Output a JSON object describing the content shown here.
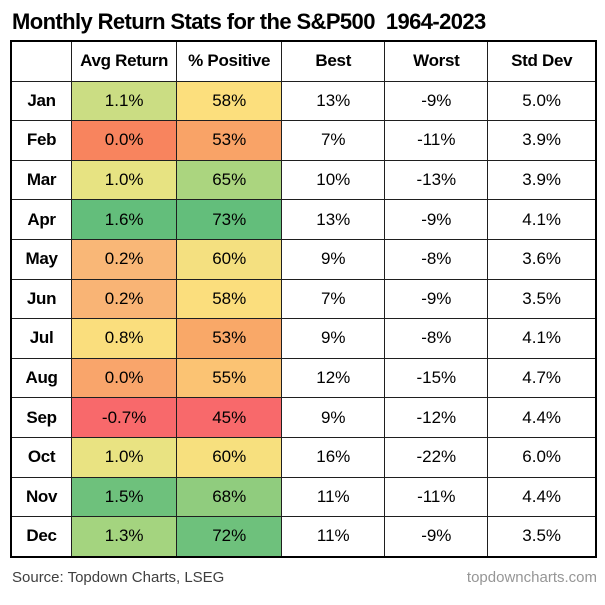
{
  "title": "Monthly Return Stats for the S&P500  1964-2023",
  "columns": [
    "",
    "Avg Return",
    "% Positive",
    "Best",
    "Worst",
    "Std Dev"
  ],
  "table": {
    "rows": [
      {
        "month": "Jan",
        "avg_return": "1.1%",
        "avg_color": "#cbdd83",
        "pct_positive": "58%",
        "pos_color": "#fcdf7d",
        "best": "13%",
        "worst": "-9%",
        "std_dev": "5.0%"
      },
      {
        "month": "Feb",
        "avg_return": "0.0%",
        "avg_color": "#f8845e",
        "pct_positive": "53%",
        "pos_color": "#f9a367",
        "best": "7%",
        "worst": "-11%",
        "std_dev": "3.9%"
      },
      {
        "month": "Mar",
        "avg_return": "1.0%",
        "avg_color": "#e7e382",
        "pct_positive": "65%",
        "pos_color": "#abd57f",
        "best": "10%",
        "worst": "-13%",
        "std_dev": "3.9%"
      },
      {
        "month": "Apr",
        "avg_return": "1.6%",
        "avg_color": "#63be7b",
        "pct_positive": "73%",
        "pos_color": "#63be7b",
        "best": "13%",
        "worst": "-9%",
        "std_dev": "4.1%"
      },
      {
        "month": "May",
        "avg_return": "0.2%",
        "avg_color": "#f9b777",
        "pct_positive": "60%",
        "pos_color": "#f4e080",
        "best": "9%",
        "worst": "-8%",
        "std_dev": "3.6%"
      },
      {
        "month": "Jun",
        "avg_return": "0.2%",
        "avg_color": "#f9b475",
        "pct_positive": "58%",
        "pos_color": "#fbde7d",
        "best": "7%",
        "worst": "-9%",
        "std_dev": "3.5%"
      },
      {
        "month": "Jul",
        "avg_return": "0.8%",
        "avg_color": "#fade7d",
        "pct_positive": "53%",
        "pos_color": "#f9a868",
        "best": "9%",
        "worst": "-8%",
        "std_dev": "4.1%"
      },
      {
        "month": "Aug",
        "avg_return": "0.0%",
        "avg_color": "#f9a56b",
        "pct_positive": "55%",
        "pos_color": "#fbc373",
        "best": "12%",
        "worst": "-15%",
        "std_dev": "4.7%"
      },
      {
        "month": "Sep",
        "avg_return": "-0.7%",
        "avg_color": "#f8696b",
        "pct_positive": "45%",
        "pos_color": "#f8696b",
        "best": "9%",
        "worst": "-12%",
        "std_dev": "4.4%"
      },
      {
        "month": "Oct",
        "avg_return": "1.0%",
        "avg_color": "#e9e382",
        "pct_positive": "60%",
        "pos_color": "#f7e07e",
        "best": "16%",
        "worst": "-22%",
        "std_dev": "6.0%"
      },
      {
        "month": "Nov",
        "avg_return": "1.5%",
        "avg_color": "#6ec17c",
        "pct_positive": "68%",
        "pos_color": "#90cc7e",
        "best": "11%",
        "worst": "-11%",
        "std_dev": "4.4%"
      },
      {
        "month": "Dec",
        "avg_return": "1.3%",
        "avg_color": "#a4d47f",
        "pct_positive": "72%",
        "pos_color": "#6ec17c",
        "best": "11%",
        "worst": "-9%",
        "std_dev": "3.5%"
      }
    ]
  },
  "footer": {
    "source": "Source: Topdown Charts, LSEG",
    "website": "topdowncharts.com"
  },
  "colors": {
    "heatmap_green": "#63be7b",
    "heatmap_yellow": "#ffeb84",
    "heatmap_red": "#f8696b",
    "border": "#000000",
    "footer_source": "#3f3f3f",
    "footer_site": "#969696"
  },
  "chart_data": {
    "type": "table",
    "title": "Monthly Return Stats for the S&P500 1964-2023",
    "row_labels": [
      "Jan",
      "Feb",
      "Mar",
      "Apr",
      "May",
      "Jun",
      "Jul",
      "Aug",
      "Sep",
      "Oct",
      "Nov",
      "Dec"
    ],
    "columns": [
      "Avg Return",
      "% Positive",
      "Best",
      "Worst",
      "Std Dev"
    ],
    "avg_return_pct": [
      1.1,
      0.0,
      1.0,
      1.6,
      0.2,
      0.2,
      0.8,
      0.0,
      -0.7,
      1.0,
      1.5,
      1.3
    ],
    "pct_positive": [
      58,
      53,
      65,
      73,
      60,
      58,
      53,
      55,
      45,
      60,
      68,
      72
    ],
    "best_pct": [
      13,
      7,
      10,
      13,
      9,
      7,
      9,
      12,
      9,
      16,
      11,
      11
    ],
    "worst_pct": [
      -9,
      -11,
      -13,
      -9,
      -8,
      -9,
      -8,
      -15,
      -12,
      -22,
      -11,
      -9
    ],
    "std_dev_pct": [
      5.0,
      3.9,
      3.9,
      4.1,
      3.6,
      3.5,
      4.1,
      4.7,
      4.4,
      6.0,
      4.4,
      3.5
    ],
    "heatmap_columns": [
      "Avg Return",
      "% Positive"
    ],
    "color_scale": "red-yellow-green",
    "source": "Topdown Charts, LSEG"
  }
}
